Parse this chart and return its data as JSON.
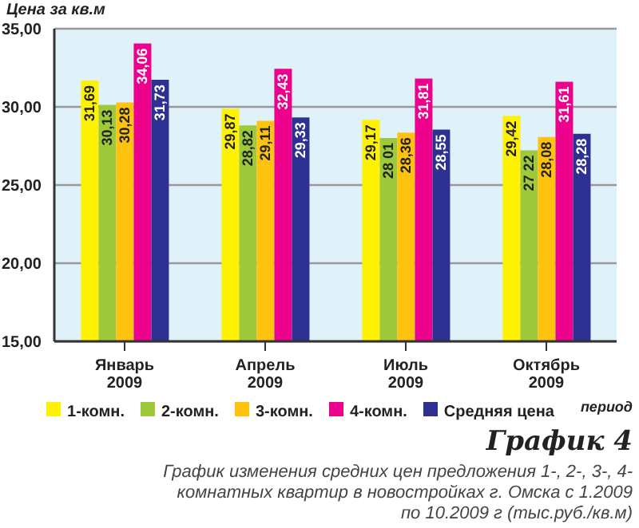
{
  "chart_data": {
    "type": "bar",
    "title": "График 4",
    "subtitle": "График изменения средних цен предложения 1-, 2-, 3-, 4-комнатных квартир в новостройках г. Омска с 1.2009 по 10.2009 г (тыс.руб./кв.м)",
    "ylabel": "Цена за кв.м",
    "xlabel": "период",
    "categories": [
      "Январь 2009",
      "Апрель 2009",
      "Июль 2009",
      "Октябрь 2009"
    ],
    "series": [
      {
        "name": "1-комн.",
        "color": "#fff200",
        "values": [
          31.69,
          29.87,
          29.17,
          29.42
        ],
        "value_labels": [
          "31,69",
          "29,87",
          "29,17",
          "29,42"
        ]
      },
      {
        "name": "2-комн.",
        "color": "#9dc93b",
        "values": [
          30.13,
          28.82,
          28.01,
          27.22
        ],
        "value_labels": [
          "30,13",
          "28,82",
          "28 01",
          "27 22"
        ]
      },
      {
        "name": "3-комн.",
        "color": "#ffc20e",
        "values": [
          30.28,
          29.11,
          28.36,
          28.08
        ],
        "value_labels": [
          "30,28",
          "29,11",
          "28,36",
          "28,08"
        ]
      },
      {
        "name": "4-комн.",
        "color": "#ec008c",
        "values": [
          34.06,
          32.43,
          31.81,
          31.61
        ],
        "value_labels": [
          "34,06",
          "32,43",
          "31,81",
          "31,61"
        ]
      },
      {
        "name": "Средняя цена",
        "color": "#2e3192",
        "values": [
          31.73,
          29.33,
          28.55,
          28.28
        ],
        "value_labels": [
          "31,73",
          "29,33",
          "28,55",
          "28,28"
        ]
      }
    ],
    "ylim": [
      15,
      35
    ],
    "yticks": [
      {
        "value": 15,
        "label": "15,00"
      },
      {
        "value": 20,
        "label": "20,00"
      },
      {
        "value": 25,
        "label": "25,00"
      },
      {
        "value": 30,
        "label": "30,00"
      },
      {
        "value": 35,
        "label": "35,00"
      }
    ],
    "grid": "y",
    "legend": "bottom"
  }
}
